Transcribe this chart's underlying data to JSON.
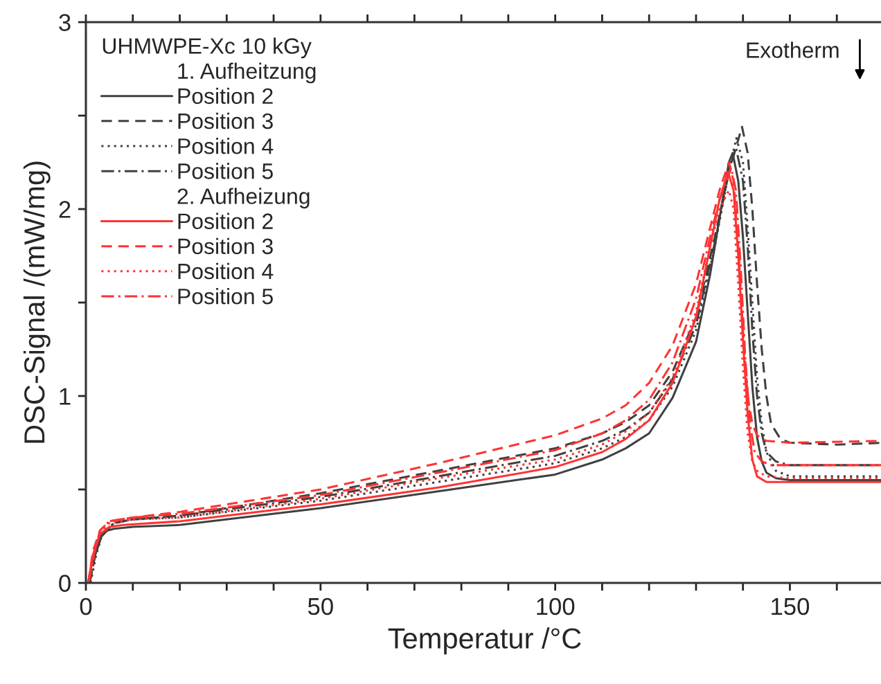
{
  "chart_data": {
    "type": "line",
    "xlabel": "Temperatur /°C",
    "ylabel": "DSC-Signal /(mW/mg)",
    "legend_title": "UHMWPE-Xc 10 kGy",
    "annotations": [
      "1. Aufheitzung",
      "2. Aufheizung",
      "Exotherm"
    ],
    "xlim": [
      0,
      170
    ],
    "ylim": [
      0,
      3
    ],
    "xticks": [
      0,
      {
        "value": 10,
        "label": null
      },
      {
        "value": 20,
        "label": null
      },
      {
        "value": 30,
        "label": null
      },
      {
        "value": 40,
        "label": null
      },
      50,
      {
        "value": 60,
        "label": null
      },
      {
        "value": 70,
        "label": null
      },
      {
        "value": 80,
        "label": null
      },
      {
        "value": 90,
        "label": null
      },
      100,
      {
        "value": 110,
        "label": null
      },
      {
        "value": 120,
        "label": null
      },
      {
        "value": 130,
        "label": null
      },
      {
        "value": 140,
        "label": null
      },
      150,
      {
        "value": 160,
        "label": null
      },
      {
        "value": 170,
        "label": null
      }
    ],
    "yticks": [
      0,
      {
        "value": 0.5,
        "label": null
      },
      1,
      {
        "value": 1.5,
        "label": null
      },
      2,
      {
        "value": 2.5,
        "label": null
      },
      3
    ],
    "grid": false,
    "legend": "top left",
    "series": [
      {
        "name": "Position 2",
        "color": "#404040",
        "line_style": "solid",
        "x": [
          0.5,
          1.5,
          3,
          4.5,
          6,
          10,
          20,
          50,
          75,
          100,
          110,
          115,
          120,
          125,
          130,
          133,
          135,
          137,
          137.8,
          139,
          140,
          141,
          142,
          143,
          144,
          145,
          147,
          150,
          170
        ],
        "values": [
          0,
          0.14,
          0.24,
          0.28,
          0.29,
          0.3,
          0.31,
          0.4,
          0.49,
          0.58,
          0.66,
          0.72,
          0.8,
          0.99,
          1.29,
          1.65,
          1.95,
          2.25,
          2.3,
          2.15,
          1.85,
          1.45,
          1.05,
          0.78,
          0.65,
          0.59,
          0.56,
          0.55,
          0.55
        ]
      },
      {
        "name": "Position 3",
        "color": "#404040",
        "line_style": "dashed",
        "x": [
          0.8,
          2,
          3.5,
          6,
          10,
          20,
          50,
          75,
          100,
          110,
          115,
          120,
          125,
          130,
          134,
          137,
          139.8,
          141,
          142,
          143,
          144,
          145,
          146,
          148,
          150,
          160,
          170
        ],
        "values": [
          0,
          0.15,
          0.26,
          0.32,
          0.34,
          0.36,
          0.48,
          0.6,
          0.72,
          0.8,
          0.86,
          0.95,
          1.13,
          1.42,
          1.85,
          2.2,
          2.44,
          2.3,
          2.0,
          1.6,
          1.25,
          1.0,
          0.85,
          0.77,
          0.75,
          0.74,
          0.75
        ]
      },
      {
        "name": "Position 4",
        "color": "#404040",
        "line_style": "dotted",
        "x": [
          1,
          2.2,
          3.5,
          6,
          10,
          20,
          50,
          75,
          100,
          110,
          115,
          120,
          125,
          130,
          134,
          137,
          138.6,
          140,
          141,
          142,
          143,
          144,
          145,
          147,
          150,
          170
        ],
        "values": [
          0,
          0.15,
          0.26,
          0.32,
          0.34,
          0.35,
          0.44,
          0.54,
          0.64,
          0.72,
          0.78,
          0.87,
          1.05,
          1.35,
          1.8,
          2.2,
          2.38,
          2.25,
          1.9,
          1.5,
          1.1,
          0.85,
          0.7,
          0.6,
          0.57,
          0.57
        ]
      },
      {
        "name": "Position 5",
        "color": "#404040",
        "line_style": "dashdot",
        "x": [
          0.8,
          2,
          3.5,
          6,
          10,
          20,
          50,
          75,
          100,
          110,
          115,
          120,
          125,
          130,
          134,
          137,
          138.5,
          140,
          141,
          142,
          143,
          144,
          145,
          147,
          150,
          170
        ],
        "values": [
          0,
          0.15,
          0.27,
          0.32,
          0.34,
          0.36,
          0.46,
          0.57,
          0.68,
          0.76,
          0.82,
          0.91,
          1.09,
          1.38,
          1.82,
          2.2,
          2.33,
          2.15,
          1.8,
          1.35,
          1.0,
          0.8,
          0.7,
          0.65,
          0.63,
          0.63
        ]
      },
      {
        "name": "Position 2",
        "color": "#ff3333",
        "line_style": "solid",
        "x": [
          0.5,
          1.5,
          3,
          5,
          8,
          20,
          50,
          75,
          100,
          110,
          115,
          120,
          125,
          130,
          133,
          135,
          136.8,
          138,
          139,
          140,
          141,
          142,
          143,
          145,
          150,
          170
        ],
        "values": [
          0,
          0.15,
          0.26,
          0.3,
          0.31,
          0.33,
          0.42,
          0.51,
          0.62,
          0.7,
          0.77,
          0.87,
          1.07,
          1.42,
          1.8,
          2.05,
          2.2,
          2.1,
          1.75,
          1.3,
          0.9,
          0.66,
          0.57,
          0.54,
          0.54,
          0.54
        ]
      },
      {
        "name": "Position 3",
        "color": "#ff3333",
        "line_style": "dashed",
        "x": [
          0.5,
          1.5,
          3,
          5,
          10,
          20,
          50,
          75,
          100,
          110,
          115,
          120,
          125,
          130,
          133,
          135,
          137,
          138,
          139,
          140,
          141,
          142,
          143,
          145,
          150,
          170
        ],
        "values": [
          0,
          0.17,
          0.28,
          0.33,
          0.35,
          0.38,
          0.5,
          0.64,
          0.79,
          0.88,
          0.95,
          1.07,
          1.27,
          1.6,
          1.9,
          2.1,
          2.25,
          2.15,
          1.8,
          1.35,
          1.0,
          0.85,
          0.79,
          0.76,
          0.75,
          0.76
        ]
      },
      {
        "name": "Position 4",
        "color": "#ff3333",
        "line_style": "dotted",
        "x": [
          0.6,
          1.8,
          3,
          5,
          10,
          20,
          50,
          75,
          100,
          110,
          115,
          120,
          125,
          130,
          133,
          135,
          137,
          138,
          139,
          140,
          141,
          142,
          143,
          145,
          150,
          170
        ],
        "values": [
          0,
          0.16,
          0.27,
          0.32,
          0.34,
          0.35,
          0.45,
          0.56,
          0.66,
          0.74,
          0.81,
          0.91,
          1.1,
          1.45,
          1.8,
          2.0,
          2.1,
          2.0,
          1.6,
          1.15,
          0.8,
          0.65,
          0.6,
          0.57,
          0.56,
          0.56
        ]
      },
      {
        "name": "Position 5",
        "color": "#ff3333",
        "line_style": "dashdot",
        "x": [
          0.6,
          1.8,
          3,
          5,
          10,
          20,
          50,
          75,
          100,
          110,
          115,
          120,
          125,
          130,
          133,
          135,
          137.5,
          138.5,
          139.5,
          140.5,
          141.5,
          142.5,
          144,
          146,
          150,
          170
        ],
        "values": [
          0,
          0.16,
          0.28,
          0.33,
          0.35,
          0.37,
          0.47,
          0.59,
          0.71,
          0.8,
          0.87,
          0.98,
          1.18,
          1.52,
          1.85,
          2.05,
          2.22,
          2.1,
          1.7,
          1.2,
          0.85,
          0.7,
          0.65,
          0.63,
          0.63,
          0.63
        ]
      }
    ]
  }
}
